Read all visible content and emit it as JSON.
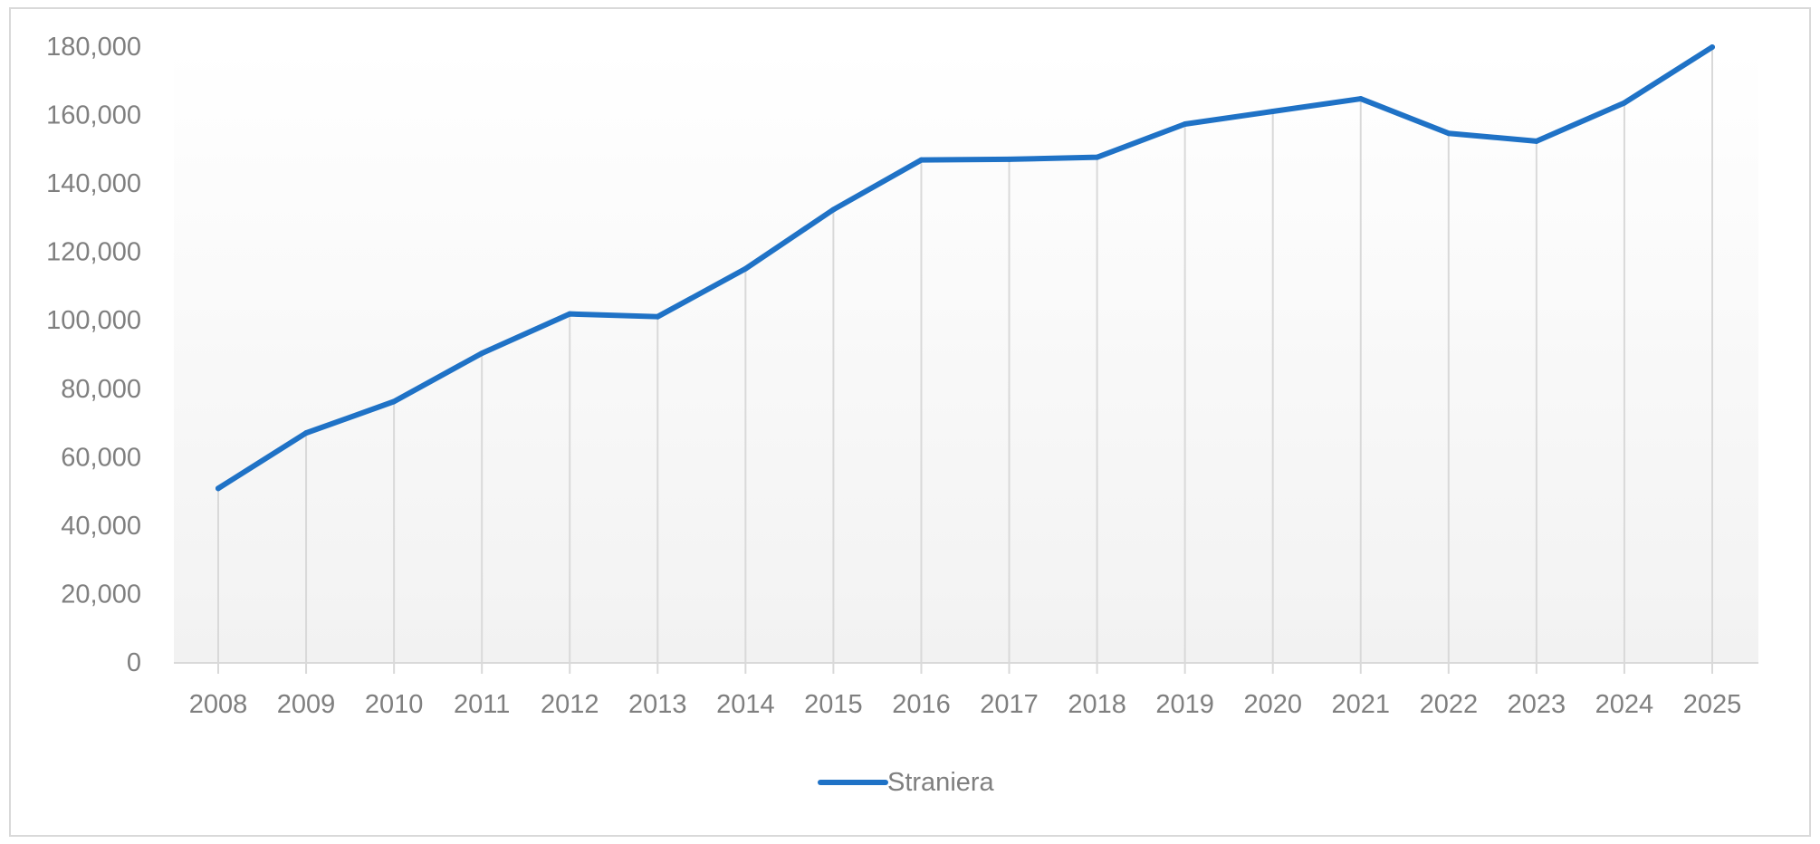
{
  "chart_data": {
    "type": "line",
    "title": "",
    "xlabel": "",
    "ylabel": "",
    "categories": [
      "2008",
      "2009",
      "2010",
      "2011",
      "2012",
      "2013",
      "2014",
      "2015",
      "2016",
      "2017",
      "2018",
      "2019",
      "2020",
      "2021",
      "2022",
      "2023",
      "2024",
      "2025"
    ],
    "series": [
      {
        "name": "Straniera",
        "color": "#1f72c6",
        "values": [
          51000,
          67200,
          76400,
          90500,
          102000,
          101200,
          115200,
          132500,
          147000,
          147200,
          147800,
          157500,
          161200,
          164900,
          154800,
          152500,
          163700,
          180000
        ]
      }
    ],
    "ylim": [
      0,
      180000
    ],
    "yticks": [
      0,
      20000,
      40000,
      60000,
      80000,
      100000,
      120000,
      140000,
      160000,
      180000
    ],
    "ytick_labels": [
      "0",
      "20,000",
      "40,000",
      "60,000",
      "80,000",
      "100,000",
      "120,000",
      "140,000",
      "160,000",
      "180,000"
    ],
    "grid": "vertical",
    "legend": "bottom-center",
    "colors": {
      "line": "#1f72c6",
      "gridline": "#d9d9d9",
      "axis": "#d9d9d9",
      "text": "#7f7f7f",
      "plot_gradient_top": "#ffffff",
      "plot_gradient_bottom": "#f2f2f2"
    }
  }
}
